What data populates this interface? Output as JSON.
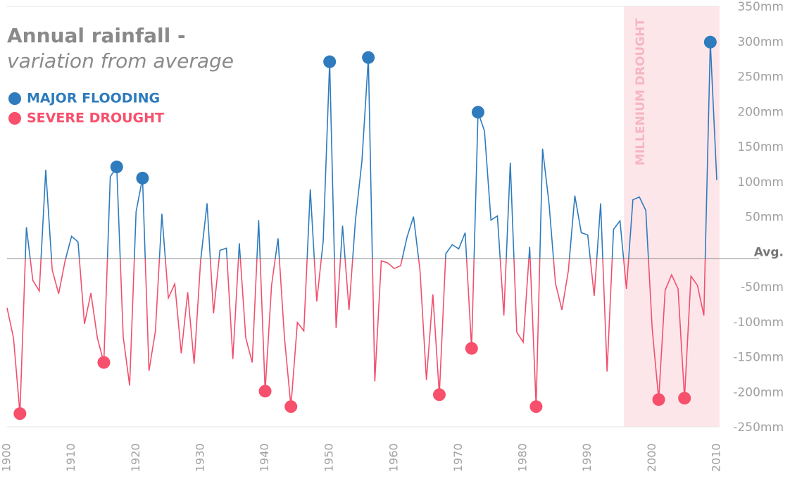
{
  "chart_data": {
    "type": "line",
    "title": "Annual rainfall -",
    "subtitle": "variation from average",
    "x": [
      1900,
      1901,
      1902,
      1903,
      1904,
      1905,
      1906,
      1907,
      1908,
      1909,
      1910,
      1911,
      1912,
      1913,
      1914,
      1915,
      1916,
      1917,
      1918,
      1919,
      1920,
      1921,
      1922,
      1923,
      1924,
      1925,
      1926,
      1927,
      1928,
      1929,
      1930,
      1931,
      1932,
      1933,
      1934,
      1935,
      1936,
      1937,
      1938,
      1939,
      1940,
      1941,
      1942,
      1943,
      1944,
      1945,
      1946,
      1947,
      1948,
      1949,
      1950,
      1951,
      1952,
      1953,
      1954,
      1955,
      1956,
      1957,
      1958,
      1959,
      1960,
      1961,
      1962,
      1963,
      1964,
      1965,
      1966,
      1967,
      1968,
      1969,
      1970,
      1971,
      1972,
      1973,
      1974,
      1975,
      1976,
      1977,
      1978,
      1979,
      1980,
      1981,
      1982,
      1983,
      1984,
      1985,
      1986,
      1987,
      1988,
      1989,
      1990,
      1991,
      1992,
      1993,
      1994,
      1995,
      1996,
      1997,
      1998,
      1999,
      2000,
      2001,
      2002,
      2003,
      2004,
      2005,
      2006,
      2007,
      2008,
      2009,
      2010
    ],
    "values": [
      -70,
      -113,
      -221,
      45,
      -31,
      -46,
      127,
      -16,
      -50,
      -3,
      32,
      24,
      -93,
      -49,
      -113,
      -148,
      117,
      131,
      -111,
      -181,
      67,
      115,
      -160,
      -103,
      64,
      -56,
      -36,
      -135,
      -48,
      -150,
      -3,
      79,
      -78,
      12,
      15,
      -143,
      22,
      -113,
      -148,
      55,
      -189,
      -38,
      29,
      -113,
      -211,
      -91,
      -103,
      99,
      -61,
      25,
      281,
      -99,
      47,
      -73,
      55,
      139,
      287,
      -175,
      -3,
      -6,
      -14,
      -10,
      31,
      60,
      -16,
      -173,
      -51,
      -194,
      7,
      20,
      14,
      37,
      -128,
      209,
      182,
      55,
      61,
      -81,
      137,
      -105,
      -119,
      17,
      -211,
      157,
      79,
      -35,
      -73,
      -17,
      90,
      37,
      34,
      -53,
      79,
      -161,
      42,
      54,
      -43,
      84,
      88,
      69,
      -101,
      -201,
      -45,
      -23,
      -43,
      -199,
      -25,
      -38,
      -81,
      309,
      112
    ],
    "above_color": "#2e7bbd",
    "below_color": "#f0506e",
    "events": [
      {
        "name": "MAJOR FLOODING",
        "color": "#2e7bbd",
        "years": [
          1917,
          1921,
          1950,
          1956,
          1973,
          2009
        ]
      },
      {
        "name": "SEVERE DROUGHT",
        "color": "#f7506c",
        "years": [
          1902,
          1915,
          1940,
          1944,
          1967,
          1972,
          1982,
          2001,
          2005
        ]
      }
    ],
    "band": {
      "label": "MILLENIUM DROUGHT",
      "range": [
        1995.6,
        2010
      ],
      "color": "#fde6ea"
    },
    "xlim": [
      1900,
      2010
    ],
    "xticks": [
      1900,
      1910,
      1920,
      1930,
      1940,
      1950,
      1960,
      1970,
      1980,
      1990,
      2000,
      2010
    ],
    "ylim": [
      -250,
      350
    ],
    "yticks": [
      {
        "value": 350,
        "label": "350mm"
      },
      {
        "value": 300,
        "label": "300mm"
      },
      {
        "value": 250,
        "label": "250mm"
      },
      {
        "value": 200,
        "label": "200mm"
      },
      {
        "value": 150,
        "label": "150mm"
      },
      {
        "value": 100,
        "label": "100mm"
      },
      {
        "value": 50,
        "label": "50mm"
      },
      {
        "value": 0,
        "label": "Avg."
      },
      {
        "value": -50,
        "label": "-50mm"
      },
      {
        "value": -100,
        "label": "-100mm"
      },
      {
        "value": -150,
        "label": "-150mm"
      },
      {
        "value": -200,
        "label": "-200mm"
      },
      {
        "value": -250,
        "label": "-250mm"
      }
    ]
  }
}
